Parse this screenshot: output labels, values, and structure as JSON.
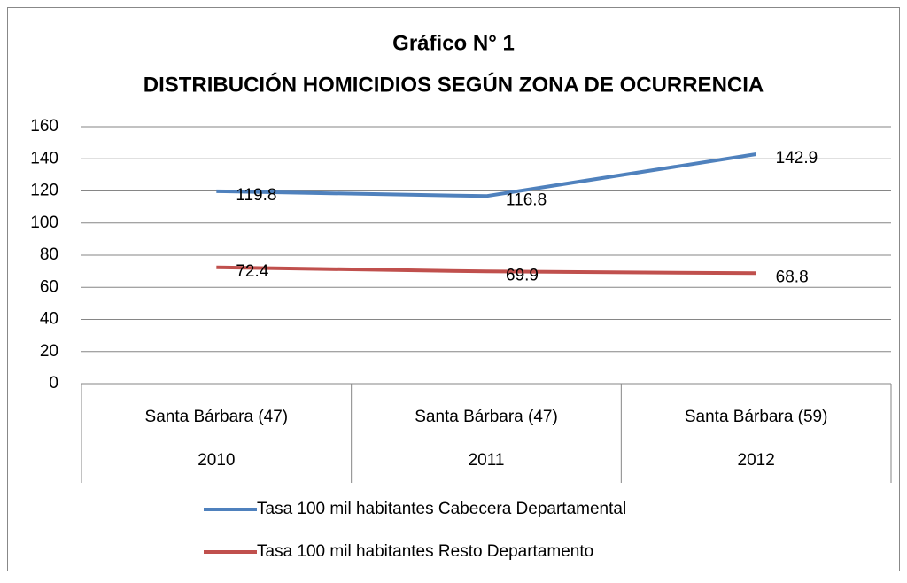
{
  "chart_data": {
    "type": "line",
    "title": "Gráfico N° 1",
    "subtitle": "DISTRIBUCIÓN HOMICIDIOS SEGÚN ZONA DE OCURRENCIA",
    "categories": [
      "Santa Bárbara (47)",
      "Santa Bárbara (47)",
      "Santa Bárbara (59)"
    ],
    "category_groups": [
      "2010",
      "2011",
      "2012"
    ],
    "series": [
      {
        "name": "Tasa 100 mil habitantes Cabecera Departamental",
        "color": "#4f81bd",
        "values": [
          119.8,
          116.8,
          142.9
        ]
      },
      {
        "name": "Tasa 100 mil habitantes Resto Departamento",
        "color": "#c0504d",
        "values": [
          72.4,
          69.9,
          68.8
        ]
      }
    ],
    "ylim": [
      0,
      160
    ],
    "yticks": [
      0,
      20,
      40,
      60,
      80,
      100,
      120,
      140,
      160
    ],
    "grid": true,
    "legend": "bottom"
  }
}
